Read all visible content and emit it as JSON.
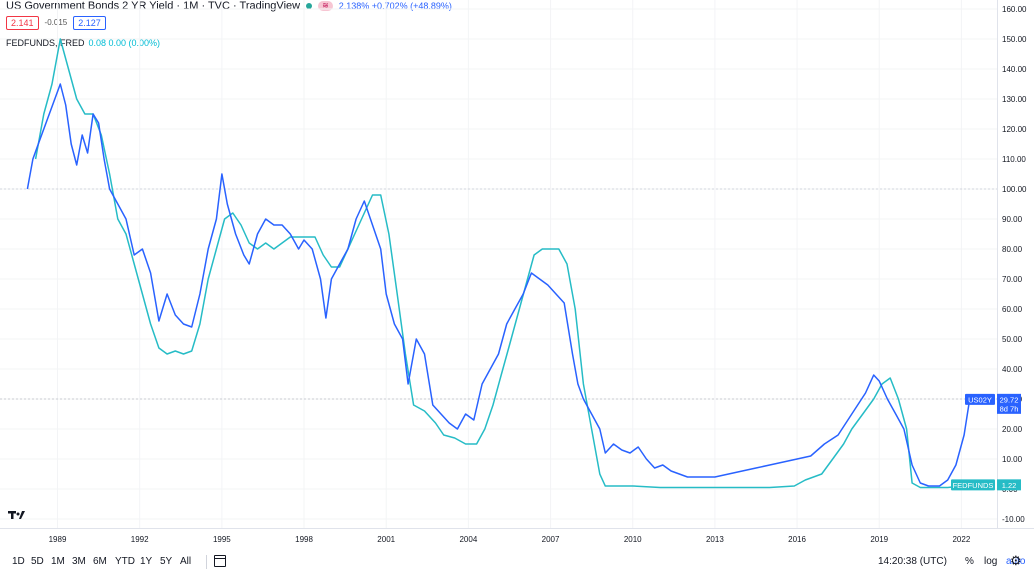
{
  "header": {
    "title": "US Government Bonds 2 YR Yield · 1M · TVC · TradingView",
    "status_pill": "≋",
    "quote": "2.138% +0.702% (+48.89%)",
    "bid": "2.141",
    "spread": "-0.015",
    "ask": "2.127",
    "indicator_name": "FEDFUNDS, FRED",
    "indicator_values": "0.08  0.00 (0.00%)"
  },
  "colors": {
    "main": "#2962ff",
    "compare": "#26bcc6",
    "bg": "#ffffff"
  },
  "chart_data": {
    "type": "line",
    "x_unit": "year",
    "y_unit": "percent (price scale)",
    "x_ticks": [
      "1989",
      "1992",
      "1995",
      "1998",
      "2001",
      "2004",
      "2007",
      "2010",
      "2013",
      "2016",
      "2019",
      "2022"
    ],
    "x_tick_values": [
      1989,
      1992,
      1995,
      1998,
      2001,
      2004,
      2007,
      2010,
      2013,
      2016,
      2019,
      2022
    ],
    "y_ticks": [
      "160.00",
      "150.00",
      "140.00",
      "130.00",
      "120.00",
      "110.00",
      "100.00",
      "90.00",
      "80.00",
      "70.00",
      "60.00",
      "50.00",
      "40.00",
      "30.00",
      "20.00",
      "10.00",
      "0.00",
      "-10.00"
    ],
    "y_tick_values": [
      160,
      150,
      140,
      130,
      120,
      110,
      100,
      90,
      80,
      70,
      60,
      50,
      40,
      30,
      20,
      10,
      0,
      -10
    ],
    "ylim": [
      -13,
      163
    ],
    "xlim": [
      1986.9,
      2023.3
    ],
    "reference_line_y": 100,
    "secondary_line_y": 30,
    "series": [
      {
        "name": "US02Y",
        "color": "#2962ff",
        "points": [
          [
            1987.9,
            100
          ],
          [
            1988.1,
            110
          ],
          [
            1988.3,
            115
          ],
          [
            1988.5,
            120
          ],
          [
            1988.7,
            125
          ],
          [
            1988.9,
            130
          ],
          [
            1989.1,
            135
          ],
          [
            1989.3,
            128
          ],
          [
            1989.5,
            115
          ],
          [
            1989.7,
            108
          ],
          [
            1989.9,
            118
          ],
          [
            1990.1,
            112
          ],
          [
            1990.3,
            125
          ],
          [
            1990.5,
            122
          ],
          [
            1990.7,
            110
          ],
          [
            1990.9,
            100
          ],
          [
            1991.2,
            95
          ],
          [
            1991.5,
            90
          ],
          [
            1991.8,
            78
          ],
          [
            1992.1,
            80
          ],
          [
            1992.4,
            72
          ],
          [
            1992.7,
            56
          ],
          [
            1993.0,
            65
          ],
          [
            1993.3,
            58
          ],
          [
            1993.6,
            55
          ],
          [
            1993.9,
            54
          ],
          [
            1994.2,
            65
          ],
          [
            1994.5,
            80
          ],
          [
            1994.8,
            90
          ],
          [
            1995.0,
            105
          ],
          [
            1995.2,
            95
          ],
          [
            1995.5,
            85
          ],
          [
            1995.8,
            78
          ],
          [
            1996.0,
            75
          ],
          [
            1996.3,
            85
          ],
          [
            1996.6,
            90
          ],
          [
            1996.9,
            88
          ],
          [
            1997.2,
            88
          ],
          [
            1997.5,
            85
          ],
          [
            1997.8,
            80
          ],
          [
            1998.0,
            83
          ],
          [
            1998.3,
            80
          ],
          [
            1998.6,
            70
          ],
          [
            1998.8,
            57
          ],
          [
            1999.0,
            70
          ],
          [
            1999.3,
            75
          ],
          [
            1999.6,
            80
          ],
          [
            1999.9,
            90
          ],
          [
            2000.2,
            96
          ],
          [
            2000.5,
            88
          ],
          [
            2000.8,
            80
          ],
          [
            2001.0,
            65
          ],
          [
            2001.3,
            55
          ],
          [
            2001.6,
            50
          ],
          [
            2001.8,
            35
          ],
          [
            2002.1,
            50
          ],
          [
            2002.4,
            45
          ],
          [
            2002.7,
            28
          ],
          [
            2003.0,
            25
          ],
          [
            2003.3,
            22
          ],
          [
            2003.6,
            20
          ],
          [
            2003.9,
            25
          ],
          [
            2004.2,
            23
          ],
          [
            2004.5,
            35
          ],
          [
            2004.8,
            40
          ],
          [
            2005.1,
            45
          ],
          [
            2005.4,
            55
          ],
          [
            2005.7,
            60
          ],
          [
            2006.0,
            65
          ],
          [
            2006.3,
            72
          ],
          [
            2006.6,
            70
          ],
          [
            2006.9,
            68
          ],
          [
            2007.2,
            65
          ],
          [
            2007.5,
            62
          ],
          [
            2007.8,
            45
          ],
          [
            2008.0,
            35
          ],
          [
            2008.2,
            30
          ],
          [
            2008.5,
            25
          ],
          [
            2008.8,
            20
          ],
          [
            2009.0,
            12
          ],
          [
            2009.3,
            15
          ],
          [
            2009.6,
            13
          ],
          [
            2009.9,
            12
          ],
          [
            2010.2,
            14
          ],
          [
            2010.5,
            10
          ],
          [
            2010.8,
            7
          ],
          [
            2011.1,
            8
          ],
          [
            2011.4,
            6
          ],
          [
            2011.7,
            5
          ],
          [
            2012.0,
            4
          ],
          [
            2012.5,
            4
          ],
          [
            2013.0,
            4
          ],
          [
            2013.5,
            5
          ],
          [
            2014.0,
            6
          ],
          [
            2014.5,
            7
          ],
          [
            2015.0,
            8
          ],
          [
            2015.5,
            9
          ],
          [
            2016.0,
            10
          ],
          [
            2016.5,
            11
          ],
          [
            2017.0,
            15
          ],
          [
            2017.5,
            18
          ],
          [
            2018.0,
            25
          ],
          [
            2018.5,
            32
          ],
          [
            2018.8,
            38
          ],
          [
            2019.0,
            36
          ],
          [
            2019.3,
            30
          ],
          [
            2019.6,
            25
          ],
          [
            2019.9,
            20
          ],
          [
            2020.2,
            8
          ],
          [
            2020.5,
            2
          ],
          [
            2020.8,
            1
          ],
          [
            2021.2,
            1
          ],
          [
            2021.5,
            3
          ],
          [
            2021.8,
            8
          ],
          [
            2022.1,
            18
          ],
          [
            2022.3,
            29.72
          ]
        ]
      },
      {
        "name": "FEDFUNDS",
        "color": "#26bcc6",
        "points": [
          [
            1988.2,
            110
          ],
          [
            1988.5,
            125
          ],
          [
            1988.8,
            135
          ],
          [
            1989.1,
            150
          ],
          [
            1989.4,
            140
          ],
          [
            1989.7,
            130
          ],
          [
            1990.0,
            125
          ],
          [
            1990.3,
            125
          ],
          [
            1990.6,
            118
          ],
          [
            1990.9,
            105
          ],
          [
            1991.2,
            90
          ],
          [
            1991.5,
            85
          ],
          [
            1991.8,
            75
          ],
          [
            1992.1,
            65
          ],
          [
            1992.4,
            55
          ],
          [
            1992.7,
            47
          ],
          [
            1993.0,
            45
          ],
          [
            1993.3,
            46
          ],
          [
            1993.6,
            45
          ],
          [
            1993.9,
            46
          ],
          [
            1994.2,
            55
          ],
          [
            1994.5,
            70
          ],
          [
            1994.8,
            80
          ],
          [
            1995.1,
            90
          ],
          [
            1995.4,
            92
          ],
          [
            1995.7,
            88
          ],
          [
            1996.0,
            82
          ],
          [
            1996.3,
            80
          ],
          [
            1996.6,
            82
          ],
          [
            1996.9,
            80
          ],
          [
            1997.2,
            82
          ],
          [
            1997.5,
            84
          ],
          [
            1997.8,
            84
          ],
          [
            1998.1,
            84
          ],
          [
            1998.4,
            84
          ],
          [
            1998.7,
            78
          ],
          [
            1999.0,
            74
          ],
          [
            1999.3,
            74
          ],
          [
            1999.6,
            80
          ],
          [
            1999.9,
            86
          ],
          [
            2000.2,
            92
          ],
          [
            2000.5,
            98
          ],
          [
            2000.8,
            98
          ],
          [
            2001.1,
            85
          ],
          [
            2001.4,
            65
          ],
          [
            2001.7,
            45
          ],
          [
            2002.0,
            28
          ],
          [
            2002.4,
            26
          ],
          [
            2002.8,
            22
          ],
          [
            2003.1,
            18
          ],
          [
            2003.5,
            17
          ],
          [
            2003.9,
            15
          ],
          [
            2004.3,
            15
          ],
          [
            2004.6,
            20
          ],
          [
            2004.9,
            28
          ],
          [
            2005.2,
            38
          ],
          [
            2005.5,
            48
          ],
          [
            2005.8,
            58
          ],
          [
            2006.1,
            68
          ],
          [
            2006.4,
            78
          ],
          [
            2006.7,
            80
          ],
          [
            2007.0,
            80
          ],
          [
            2007.3,
            80
          ],
          [
            2007.6,
            75
          ],
          [
            2007.9,
            60
          ],
          [
            2008.2,
            35
          ],
          [
            2008.5,
            20
          ],
          [
            2008.8,
            5
          ],
          [
            2009.0,
            1
          ],
          [
            2010.0,
            1
          ],
          [
            2011.0,
            0.5
          ],
          [
            2012.0,
            0.5
          ],
          [
            2013.0,
            0.5
          ],
          [
            2014.0,
            0.5
          ],
          [
            2015.0,
            0.5
          ],
          [
            2015.9,
            1
          ],
          [
            2016.3,
            3
          ],
          [
            2016.9,
            5
          ],
          [
            2017.3,
            10
          ],
          [
            2017.7,
            15
          ],
          [
            2018.0,
            20
          ],
          [
            2018.4,
            25
          ],
          [
            2018.8,
            30
          ],
          [
            2019.1,
            35
          ],
          [
            2019.4,
            37
          ],
          [
            2019.7,
            30
          ],
          [
            2020.0,
            20
          ],
          [
            2020.2,
            2
          ],
          [
            2020.5,
            0.5
          ],
          [
            2021.5,
            0.5
          ],
          [
            2022.0,
            1
          ],
          [
            2022.3,
            1.22
          ]
        ]
      }
    ],
    "labels": [
      {
        "text": "US02Y",
        "value_text": "29.72",
        "sub_text": "8d 7h",
        "y": 29.72,
        "color": "#2962ff"
      },
      {
        "text": "FEDFUNDS",
        "value_text": "1.22",
        "y": 1.22,
        "color": "#26bcc6"
      }
    ]
  },
  "bottombar": {
    "ranges": [
      "1D",
      "5D",
      "1M",
      "3M",
      "6M",
      "YTD",
      "1Y",
      "5Y",
      "All"
    ],
    "clock": "14:20:38 (UTC)",
    "options": [
      "%",
      "log",
      "auto"
    ]
  }
}
